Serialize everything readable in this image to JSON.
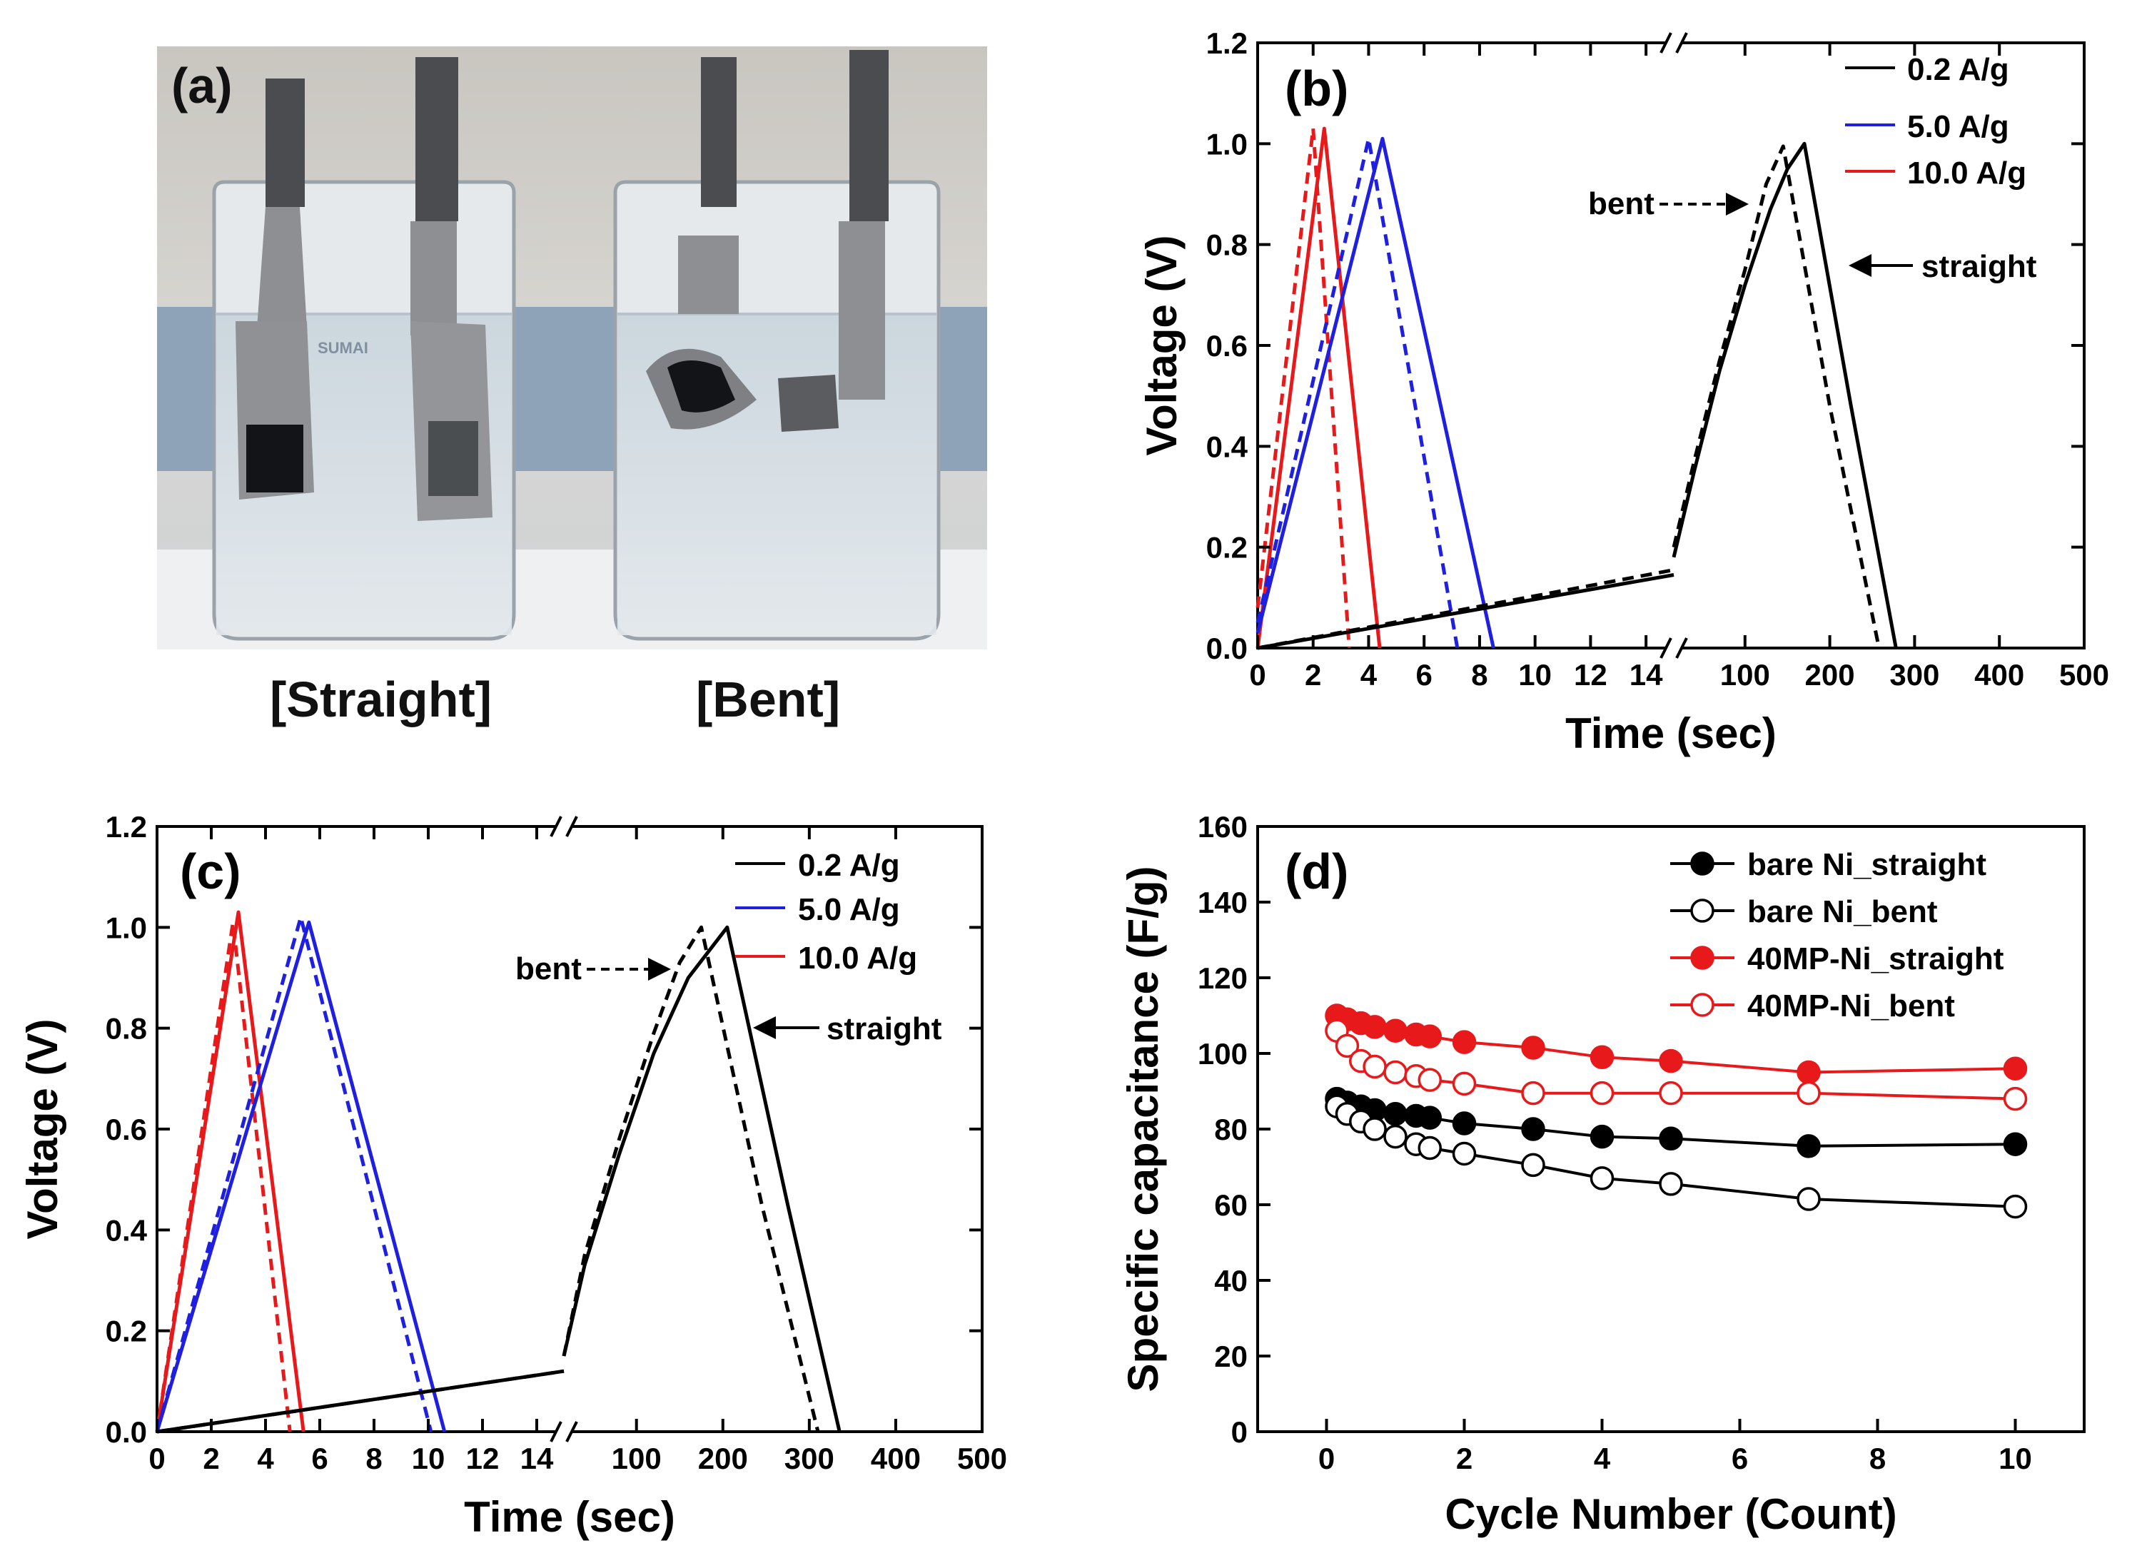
{
  "panel_a": {
    "label": "(a)",
    "captions": [
      "[Straight]",
      "[Bent]"
    ],
    "photo_text": "SUMAI"
  },
  "chart_data": [
    {
      "id": "b",
      "type": "line",
      "panel_label": "(b)",
      "xlabel": "Time (sec)",
      "ylabel": "Voltage (V)",
      "ylim": [
        0,
        1.2
      ],
      "yticks": [
        "0.0",
        "0.2",
        "0.4",
        "0.6",
        "0.8",
        "1.0",
        "1.2"
      ],
      "x_break": true,
      "x_left_range": [
        0,
        15
      ],
      "x_left_ticks": [
        "0",
        "2",
        "4",
        "6",
        "8",
        "10",
        "12",
        "14"
      ],
      "x_right_range": [
        16,
        500
      ],
      "x_right_ticks": [
        "100",
        "200",
        "300",
        "400",
        "500"
      ],
      "legend": [
        "0.2 A/g",
        "5.0 A/g",
        "10.0 A/g"
      ],
      "colors": [
        "#000000",
        "#1f1fe0",
        "#e8191b"
      ],
      "annotations": {
        "bent": "bent",
        "straight": "straight"
      },
      "series": [
        {
          "name": "10.0 A/g straight",
          "color": "#e8191b",
          "dash": false,
          "segment": "left",
          "points": [
            [
              0,
              0
            ],
            [
              2.4,
              1.03
            ],
            [
              4.4,
              0
            ]
          ]
        },
        {
          "name": "10.0 A/g bent",
          "color": "#e8191b",
          "dash": true,
          "segment": "left",
          "points": [
            [
              0,
              0.08
            ],
            [
              2.0,
              1.03
            ],
            [
              3.3,
              0
            ]
          ]
        },
        {
          "name": "5.0 A/g straight",
          "color": "#1f1fe0",
          "dash": false,
          "segment": "left",
          "points": [
            [
              0,
              0.03
            ],
            [
              4.5,
              1.01
            ],
            [
              8.5,
              0
            ]
          ]
        },
        {
          "name": "5.0 A/g bent",
          "color": "#1f1fe0",
          "dash": true,
          "segment": "left",
          "points": [
            [
              0,
              0.05
            ],
            [
              4.0,
              1.01
            ],
            [
              7.2,
              0
            ]
          ]
        },
        {
          "name": "0.2 A/g straight",
          "color": "#000000",
          "dash": false,
          "segment": "both",
          "points": [
            [
              0,
              0
            ],
            [
              15,
              0.145
            ],
            [
              16,
              0.18
            ],
            [
              40,
              0.35
            ],
            [
              70,
              0.55
            ],
            [
              100,
              0.72
            ],
            [
              130,
              0.87
            ],
            [
              150,
              0.95
            ],
            [
              170,
              1.0
            ],
            [
              225,
              0.48
            ],
            [
              278,
              0
            ]
          ]
        },
        {
          "name": "0.2 A/g bent",
          "color": "#000000",
          "dash": true,
          "segment": "both",
          "points": [
            [
              0,
              0
            ],
            [
              15,
              0.155
            ],
            [
              16,
              0.2
            ],
            [
              40,
              0.37
            ],
            [
              70,
              0.57
            ],
            [
              100,
              0.75
            ],
            [
              125,
              0.92
            ],
            [
              145,
              0.995
            ],
            [
              200,
              0.48
            ],
            [
              258,
              0
            ]
          ]
        }
      ]
    },
    {
      "id": "c",
      "type": "line",
      "panel_label": "(c)",
      "xlabel": "Time (sec)",
      "ylabel": "Voltage (V)",
      "ylim": [
        0,
        1.2
      ],
      "yticks": [
        "0.0",
        "0.2",
        "0.4",
        "0.6",
        "0.8",
        "1.0",
        "1.2"
      ],
      "x_break": true,
      "x_left_range": [
        0,
        15
      ],
      "x_left_ticks": [
        "0",
        "2",
        "4",
        "6",
        "8",
        "10",
        "12",
        "14"
      ],
      "x_right_range": [
        16,
        500
      ],
      "x_right_ticks": [
        "100",
        "200",
        "300",
        "400",
        "500"
      ],
      "legend": [
        "0.2 A/g",
        "5.0 A/g",
        "10.0 A/g"
      ],
      "colors": [
        "#000000",
        "#1f1fe0",
        "#e8191b"
      ],
      "annotations": {
        "bent": "bent",
        "straight": "straight"
      },
      "series": [
        {
          "name": "10.0 A/g straight",
          "color": "#e8191b",
          "dash": false,
          "segment": "left",
          "points": [
            [
              0,
              0
            ],
            [
              3.0,
              1.03
            ],
            [
              5.4,
              0
            ]
          ]
        },
        {
          "name": "10.0 A/g bent",
          "color": "#e8191b",
          "dash": true,
          "segment": "left",
          "points": [
            [
              0,
              0
            ],
            [
              2.8,
              1.01
            ],
            [
              4.9,
              0
            ]
          ]
        },
        {
          "name": "5.0 A/g straight",
          "color": "#1f1fe0",
          "dash": false,
          "segment": "left",
          "points": [
            [
              0,
              0
            ],
            [
              5.6,
              1.01
            ],
            [
              10.6,
              0
            ]
          ]
        },
        {
          "name": "5.0 A/g bent",
          "color": "#1f1fe0",
          "dash": true,
          "segment": "left",
          "points": [
            [
              0,
              0
            ],
            [
              5.3,
              1.02
            ],
            [
              10.1,
              0
            ]
          ]
        },
        {
          "name": "0.2 A/g straight",
          "color": "#000000",
          "dash": false,
          "segment": "both",
          "points": [
            [
              0,
              0
            ],
            [
              15,
              0.12
            ],
            [
              16,
              0.15
            ],
            [
              40,
              0.33
            ],
            [
              80,
              0.55
            ],
            [
              120,
              0.75
            ],
            [
              160,
              0.9
            ],
            [
              205,
              1.0
            ],
            [
              275,
              0.45
            ],
            [
              335,
              0
            ]
          ]
        },
        {
          "name": "0.2 A/g bent",
          "color": "#000000",
          "dash": true,
          "segment": "both",
          "points": [
            [
              0,
              0
            ],
            [
              15,
              0.12
            ],
            [
              16,
              0.15
            ],
            [
              40,
              0.35
            ],
            [
              80,
              0.58
            ],
            [
              120,
              0.79
            ],
            [
              150,
              0.93
            ],
            [
              175,
              1.0
            ],
            [
              245,
              0.45
            ],
            [
              310,
              0
            ]
          ]
        }
      ]
    },
    {
      "id": "d",
      "type": "scatter",
      "panel_label": "(d)",
      "xlabel": "Cycle Number (Count)",
      "ylabel": "Specific capacitance (F/g)",
      "xlim": [
        -1,
        11
      ],
      "ylim": [
        0,
        160
      ],
      "xticks": [
        "0",
        "2",
        "4",
        "6",
        "8",
        "10"
      ],
      "yticks": [
        "0",
        "20",
        "40",
        "60",
        "80",
        "100",
        "120",
        "140",
        "160"
      ],
      "legend": [
        "bare Ni_straight",
        "bare Ni_bent",
        "40MP-Ni_straight",
        "40MP-Ni_bent"
      ],
      "series": [
        {
          "name": "bare Ni_straight",
          "color": "#000000",
          "filled": true,
          "x": [
            0.15,
            0.3,
            0.5,
            0.7,
            1.0,
            1.3,
            1.5,
            2,
            3,
            4,
            5,
            7,
            10
          ],
          "y": [
            88,
            87,
            86,
            85,
            84,
            83.5,
            83,
            81.5,
            80,
            78,
            77.5,
            75.5,
            76
          ]
        },
        {
          "name": "bare Ni_bent",
          "color": "#000000",
          "filled": false,
          "x": [
            0.15,
            0.3,
            0.5,
            0.7,
            1.0,
            1.3,
            1.5,
            2,
            3,
            4,
            5,
            7,
            10
          ],
          "y": [
            86,
            84,
            82,
            80,
            78,
            76,
            75,
            73.5,
            70.5,
            67,
            65.5,
            61.5,
            59.5
          ]
        },
        {
          "name": "40MP-Ni_straight",
          "color": "#e8191b",
          "filled": true,
          "x": [
            0.15,
            0.3,
            0.5,
            0.7,
            1.0,
            1.3,
            1.5,
            2,
            3,
            4,
            5,
            7,
            10
          ],
          "y": [
            110,
            109,
            108,
            107,
            106,
            105,
            104.5,
            103,
            101.5,
            99,
            98,
            95,
            96
          ]
        },
        {
          "name": "40MP-Ni_bent",
          "color": "#e8191b",
          "filled": false,
          "x": [
            0.15,
            0.3,
            0.5,
            0.7,
            1.0,
            1.3,
            1.5,
            2,
            3,
            4,
            5,
            7,
            10
          ],
          "y": [
            106,
            102,
            98,
            96.5,
            95,
            94,
            93,
            92,
            89.5,
            89.5,
            89.5,
            89.5,
            88
          ]
        }
      ]
    }
  ]
}
